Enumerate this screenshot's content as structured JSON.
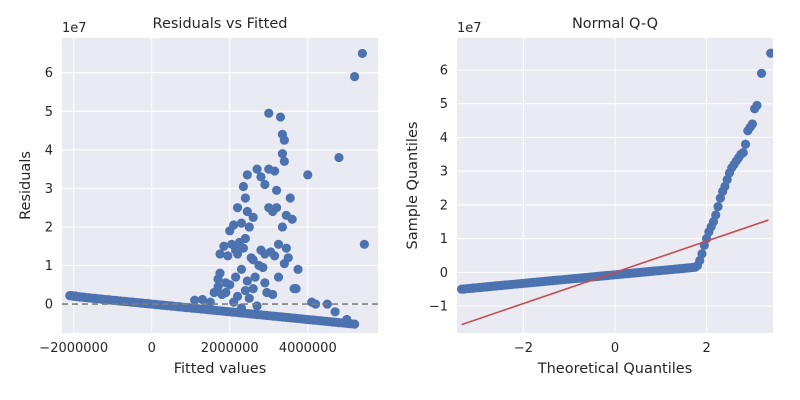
{
  "chart_data": [
    {
      "type": "scatter",
      "title": "Residuals vs Fitted",
      "xlabel": "Fitted values",
      "ylabel": "Residuals",
      "y_offset_label": "1e7",
      "xlim": [
        -2300000,
        5800000
      ],
      "ylim": [
        -0.75,
        6.9
      ],
      "x_ticks": [
        -2000000,
        0,
        2000000,
        4000000
      ],
      "x_tick_labels": [
        "−2000000",
        "0",
        "2000000",
        "4000000"
      ],
      "y_ticks": [
        0,
        1,
        2,
        3,
        4,
        5,
        6
      ],
      "y_tick_labels": [
        "0",
        "1",
        "2",
        "3",
        "4",
        "5",
        "6"
      ],
      "grid": true,
      "reference_line": {
        "y": 0,
        "style": "dashed",
        "color": "#808080"
      },
      "marker_color": "#4c72b0",
      "band": {
        "x_start": -2000000,
        "y_start": 0.2,
        "x_end": 5200000,
        "y_end": -0.52
      },
      "points": [
        [
          -2100000,
          0.22
        ],
        [
          -2050000,
          0.22
        ],
        [
          -1950000,
          0.21
        ],
        [
          -1850000,
          0.19
        ],
        [
          -1750000,
          0.18
        ],
        [
          -1600000,
          0.16
        ],
        [
          -1450000,
          0.15
        ],
        [
          -1300000,
          0.13
        ],
        [
          -1100000,
          0.11
        ],
        [
          -900000,
          0.09
        ],
        [
          -700000,
          0.07
        ],
        [
          -500000,
          0.05
        ],
        [
          -300000,
          0.03
        ],
        [
          -100000,
          0.01
        ],
        [
          100000,
          -0.01
        ],
        [
          300000,
          -0.03
        ],
        [
          500000,
          -0.05
        ],
        [
          700000,
          -0.07
        ],
        [
          900000,
          -0.09
        ],
        [
          1100000,
          0.1
        ],
        [
          1300000,
          0.12
        ],
        [
          1500000,
          0.05
        ],
        [
          1600000,
          0.3
        ],
        [
          1700000,
          0.65
        ],
        [
          1700000,
          0.45
        ],
        [
          1750000,
          1.3
        ],
        [
          1750000,
          0.8
        ],
        [
          1800000,
          0.25
        ],
        [
          1850000,
          1.5
        ],
        [
          1900000,
          0.55
        ],
        [
          1900000,
          0.3
        ],
        [
          1950000,
          1.25
        ],
        [
          2000000,
          1.9
        ],
        [
          2000000,
          0.5
        ],
        [
          2050000,
          1.55
        ],
        [
          2100000,
          2.05
        ],
        [
          2150000,
          0.7
        ],
        [
          2150000,
          1.4
        ],
        [
          2200000,
          2.5
        ],
        [
          2200000,
          1.3
        ],
        [
          2200000,
          0.2
        ],
        [
          2250000,
          1.6
        ],
        [
          2300000,
          2.1
        ],
        [
          2300000,
          0.9
        ],
        [
          2350000,
          3.05
        ],
        [
          2350000,
          1.45
        ],
        [
          2400000,
          2.75
        ],
        [
          2400000,
          1.7
        ],
        [
          2450000,
          3.35
        ],
        [
          2450000,
          0.6
        ],
        [
          2450000,
          2.4
        ],
        [
          2500000,
          2.0
        ],
        [
          2550000,
          1.2
        ],
        [
          2600000,
          1.15
        ],
        [
          2600000,
          2.25
        ],
        [
          2650000,
          0.7
        ],
        [
          2700000,
          3.5
        ],
        [
          2750000,
          1.0
        ],
        [
          2800000,
          3.3
        ],
        [
          2800000,
          1.4
        ],
        [
          2850000,
          0.95
        ],
        [
          2900000,
          1.3
        ],
        [
          2900000,
          3.1
        ],
        [
          2950000,
          0.3
        ],
        [
          3000000,
          4.95
        ],
        [
          3000000,
          3.5
        ],
        [
          3000000,
          2.5
        ],
        [
          3050000,
          1.35
        ],
        [
          3100000,
          2.4
        ],
        [
          3150000,
          1.25
        ],
        [
          3150000,
          3.45
        ],
        [
          3200000,
          2.95
        ],
        [
          3200000,
          2.5
        ],
        [
          3250000,
          0.7
        ],
        [
          3250000,
          1.55
        ],
        [
          3300000,
          4.85
        ],
        [
          3350000,
          4.4
        ],
        [
          3350000,
          3.9
        ],
        [
          3350000,
          2.0
        ],
        [
          3400000,
          4.25
        ],
        [
          3400000,
          3.7
        ],
        [
          3400000,
          1.05
        ],
        [
          3450000,
          1.45
        ],
        [
          3450000,
          2.3
        ],
        [
          3500000,
          1.2
        ],
        [
          3550000,
          2.75
        ],
        [
          3600000,
          2.2
        ],
        [
          3650000,
          0.4
        ],
        [
          3700000,
          0.4
        ],
        [
          3750000,
          0.9
        ],
        [
          4000000,
          3.35
        ],
        [
          4100000,
          0.05
        ],
        [
          4200000,
          0.0
        ],
        [
          2100000,
          0.05
        ],
        [
          2300000,
          -0.1
        ],
        [
          2500000,
          0.15
        ],
        [
          2700000,
          -0.05
        ],
        [
          3100000,
          0.25
        ],
        [
          2600000,
          0.4
        ],
        [
          2900000,
          0.55
        ],
        [
          2400000,
          0.35
        ],
        [
          4500000,
          0.0
        ],
        [
          4700000,
          -0.2
        ],
        [
          4800000,
          3.8
        ],
        [
          5000000,
          -0.4
        ],
        [
          5200000,
          5.9
        ],
        [
          5400000,
          6.5
        ],
        [
          5450000,
          1.55
        ]
      ]
    },
    {
      "type": "scatter",
      "title": "Normal Q-Q",
      "xlabel": "Theoretical Quantiles",
      "ylabel": "Sample Quantiles",
      "y_offset_label": "1e7",
      "xlim": [
        -3.45,
        3.45
      ],
      "ylim": [
        -1.8,
        6.95
      ],
      "x_ticks": [
        -2,
        0,
        2
      ],
      "x_tick_labels": [
        "−2",
        "0",
        "2"
      ],
      "y_ticks": [
        -1,
        0,
        1,
        2,
        3,
        4,
        5,
        6
      ],
      "y_tick_labels": [
        "−1",
        "0",
        "1",
        "2",
        "3",
        "4",
        "5",
        "6"
      ],
      "grid": true,
      "reference_line": {
        "x": [
          -3.35,
          3.35
        ],
        "y": [
          -1.55,
          1.55
        ],
        "color": "#c44e52"
      },
      "marker_color": "#4c72b0",
      "band": {
        "x_start": -3.35,
        "y_start": -0.5,
        "x_end": 1.75,
        "y_end": 0.15
      },
      "points": [
        [
          -3.3,
          -0.5
        ],
        [
          -3.1,
          -0.47
        ],
        [
          -2.95,
          -0.45
        ],
        [
          -2.8,
          -0.43
        ],
        [
          -2.6,
          -0.4
        ],
        [
          1.8,
          0.2
        ],
        [
          1.85,
          0.35
        ],
        [
          1.9,
          0.55
        ],
        [
          1.95,
          0.8
        ],
        [
          2.0,
          1.0
        ],
        [
          2.05,
          1.2
        ],
        [
          2.1,
          1.35
        ],
        [
          2.15,
          1.5
        ],
        [
          2.2,
          1.7
        ],
        [
          2.25,
          1.95
        ],
        [
          2.3,
          2.2
        ],
        [
          2.35,
          2.4
        ],
        [
          2.4,
          2.55
        ],
        [
          2.45,
          2.75
        ],
        [
          2.5,
          2.95
        ],
        [
          2.55,
          3.1
        ],
        [
          2.6,
          3.2
        ],
        [
          2.65,
          3.3
        ],
        [
          2.7,
          3.4
        ],
        [
          2.75,
          3.5
        ],
        [
          2.8,
          3.55
        ],
        [
          2.85,
          3.8
        ],
        [
          2.9,
          4.2
        ],
        [
          2.95,
          4.3
        ],
        [
          3.0,
          4.4
        ],
        [
          3.05,
          4.85
        ],
        [
          3.1,
          4.95
        ],
        [
          3.2,
          5.9
        ],
        [
          3.4,
          6.5
        ]
      ]
    }
  ]
}
